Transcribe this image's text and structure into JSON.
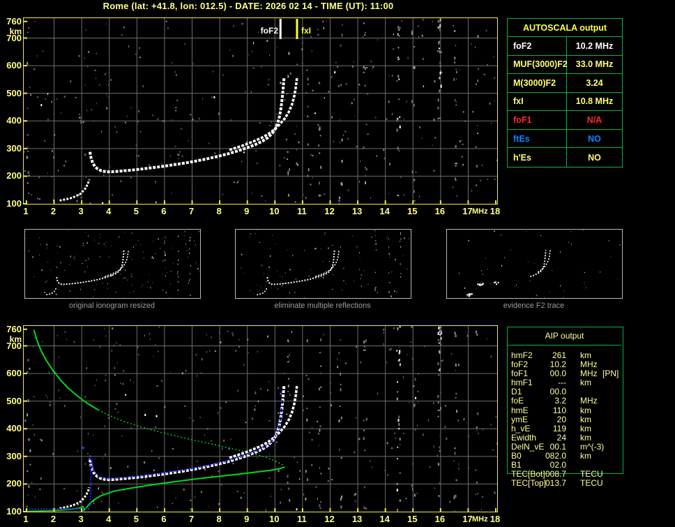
{
  "header": {
    "title": "Rome (lat: +41.8, lon: 012.5) - DATE: 2026 02 14 - TIME (UT): 11:00"
  },
  "autoscala": {
    "title": "AUTOSCALA output",
    "rows": [
      {
        "label": "foF2",
        "value": "10.2 MHz",
        "color": "#ffffff"
      },
      {
        "label": "MUF(3000)F2",
        "value": "33.0 MHz",
        "color": "#ffff73"
      },
      {
        "label": "M(3000)F2",
        "value": "3.24",
        "color": "#ffff73"
      },
      {
        "label": "fxI",
        "value": "10.8 MHz",
        "color": "#ffff73"
      },
      {
        "label": "foF1",
        "value": "N/A",
        "color": "#ff2a2a"
      },
      {
        "label": "ftEs",
        "value": "NO",
        "color": "#0b86ff"
      },
      {
        "label": "h'Es",
        "value": "NO",
        "color": "#ffff73"
      }
    ]
  },
  "aip": {
    "title": "AIP output",
    "rows": [
      {
        "label": "hmF2",
        "value": "261",
        "unit": "km",
        "note": ""
      },
      {
        "label": "foF2",
        "value": "10.2",
        "unit": "MHz",
        "note": ""
      },
      {
        "label": "foF1",
        "value": "00.0",
        "unit": "MHz",
        "note": "[PN]"
      },
      {
        "label": "hmF1",
        "value": "---",
        "unit": "km",
        "note": ""
      },
      {
        "label": "D1",
        "value": "00.0",
        "unit": "",
        "note": ""
      },
      {
        "label": "foE",
        "value": "3.2",
        "unit": "MHz",
        "note": ""
      },
      {
        "label": "hmE",
        "value": "110",
        "unit": "km",
        "note": ""
      },
      {
        "label": "ymE",
        "value": "20",
        "unit": "km",
        "note": ""
      },
      {
        "label": "h_vE",
        "value": "119",
        "unit": "km",
        "note": ""
      },
      {
        "label": "Ewidth",
        "value": "24",
        "unit": "km",
        "note": ""
      },
      {
        "label": "DelN_vE",
        "value": "00.1",
        "unit": "m^(-3)",
        "note": ""
      },
      {
        "label": "B0",
        "value": "082.0",
        "unit": "km",
        "note": ""
      },
      {
        "label": "B1",
        "value": "02.0",
        "unit": "",
        "note": ""
      },
      {
        "label": "TEC[Bot]",
        "value": "008.7",
        "unit": "TECU",
        "note": ""
      },
      {
        "label": "TEC[Top]",
        "value": "013.7",
        "unit": "TECU",
        "note": ""
      }
    ]
  },
  "thumbnails": [
    {
      "caption": "original ionogram resized"
    },
    {
      "caption": "eliminate multiple reflections"
    },
    {
      "caption": "evidence F2 trace"
    }
  ],
  "chart_data": {
    "type": "scatter",
    "title": "Ionogram virtual height vs sounding frequency (top: recorded ionogram with AUTOSCALA markers; bottom: same ionogram with scaled trace in blue and inverted electron density profile in green)",
    "xlabel": "MHz",
    "ylabel": "km",
    "x_unit": "MHz",
    "y_unit": "km",
    "xlim": [
      0.9,
      18.05
    ],
    "ylim": [
      100,
      772
    ],
    "x_ticks": [
      1,
      2,
      3,
      4,
      5,
      6,
      7,
      8,
      9,
      10,
      11,
      12,
      13,
      14,
      15,
      16,
      17,
      18
    ],
    "y_ticks": [
      760,
      700,
      600,
      500,
      400,
      300,
      200,
      100
    ],
    "grid": true,
    "markers": [
      {
        "label": "foF2",
        "f": 10.2,
        "color": "#ffffff"
      },
      {
        "label": "fxI",
        "f": 10.8,
        "color": "#ffff30"
      }
    ],
    "series": {
      "o_mode_E": [
        [
          2.2,
          112
        ],
        [
          2.35,
          115
        ],
        [
          2.5,
          118
        ],
        [
          2.65,
          122
        ],
        [
          2.8,
          128
        ],
        [
          2.95,
          136
        ],
        [
          3.05,
          146
        ],
        [
          3.15,
          158
        ],
        [
          3.22,
          172
        ],
        [
          3.28,
          188
        ]
      ],
      "o_mode_F": [
        [
          3.3,
          288
        ],
        [
          3.34,
          266
        ],
        [
          3.4,
          248
        ],
        [
          3.48,
          235
        ],
        [
          3.58,
          226
        ],
        [
          3.72,
          219
        ],
        [
          3.9,
          216
        ],
        [
          4.1,
          216
        ],
        [
          4.35,
          218
        ],
        [
          4.7,
          221
        ],
        [
          5.1,
          225
        ],
        [
          5.5,
          230
        ],
        [
          5.9,
          235
        ],
        [
          6.3,
          241
        ],
        [
          6.7,
          247
        ],
        [
          7.1,
          254
        ],
        [
          7.5,
          262
        ],
        [
          7.9,
          271
        ],
        [
          8.3,
          281
        ],
        [
          8.7,
          293
        ],
        [
          9.0,
          303
        ],
        [
          9.3,
          315
        ],
        [
          9.55,
          327
        ],
        [
          9.75,
          340
        ],
        [
          9.9,
          355
        ],
        [
          10.02,
          372
        ],
        [
          10.1,
          392
        ],
        [
          10.17,
          418
        ],
        [
          10.22,
          448
        ],
        [
          10.26,
          480
        ],
        [
          10.29,
          510
        ],
        [
          10.31,
          535
        ],
        [
          10.33,
          558
        ]
      ],
      "x_mode_F": [
        [
          8.35,
          295
        ],
        [
          8.6,
          303
        ],
        [
          8.9,
          313
        ],
        [
          9.2,
          325
        ],
        [
          9.5,
          338
        ],
        [
          9.75,
          352
        ],
        [
          9.95,
          367
        ],
        [
          10.15,
          385
        ],
        [
          10.35,
          408
        ],
        [
          10.5,
          432
        ],
        [
          10.62,
          460
        ],
        [
          10.7,
          490
        ],
        [
          10.75,
          518
        ],
        [
          10.78,
          542
        ],
        [
          10.8,
          560
        ]
      ],
      "blue_flat": [
        [
          1.0,
          109
        ],
        [
          3.3,
          110
        ]
      ],
      "blue_F": [
        [
          3.31,
          122
        ],
        [
          3.32,
          158
        ],
        [
          3.33,
          200
        ],
        [
          3.34,
          245
        ],
        [
          3.33,
          272
        ],
        [
          3.36,
          290
        ],
        [
          3.42,
          252
        ],
        [
          3.5,
          238
        ],
        [
          3.6,
          229
        ],
        [
          3.74,
          222
        ],
        [
          3.92,
          220
        ],
        [
          4.12,
          220
        ],
        [
          4.37,
          222
        ],
        [
          4.72,
          225
        ],
        [
          5.12,
          229
        ],
        [
          5.52,
          234
        ],
        [
          5.92,
          239
        ],
        [
          6.32,
          245
        ],
        [
          6.72,
          251
        ],
        [
          7.12,
          258
        ],
        [
          7.52,
          266
        ],
        [
          7.92,
          275
        ],
        [
          8.32,
          285
        ],
        [
          8.72,
          297
        ],
        [
          9.02,
          307
        ],
        [
          9.32,
          319
        ],
        [
          9.57,
          331
        ],
        [
          9.77,
          344
        ],
        [
          9.92,
          359
        ],
        [
          10.04,
          376
        ],
        [
          10.12,
          396
        ],
        [
          10.18,
          422
        ],
        [
          10.22,
          452
        ],
        [
          10.25,
          482
        ],
        [
          10.27,
          505
        ]
      ],
      "blue_stray": [
        [
          3.04,
          332
        ],
        [
          3.27,
          292
        ],
        [
          10.2,
          528
        ]
      ],
      "profile_upper": [
        [
          1.27,
          758
        ],
        [
          1.38,
          720
        ],
        [
          1.52,
          685
        ],
        [
          1.7,
          650
        ],
        [
          1.95,
          612
        ],
        [
          2.2,
          580
        ],
        [
          2.5,
          548
        ],
        [
          2.85,
          518
        ],
        [
          3.2,
          492
        ],
        [
          3.6,
          468
        ],
        [
          4.0,
          448
        ],
        [
          4.5,
          428
        ],
        [
          5.0,
          411
        ],
        [
          5.6,
          394
        ],
        [
          6.2,
          379
        ],
        [
          6.9,
          362
        ],
        [
          7.6,
          347
        ],
        [
          8.3,
          331
        ],
        [
          9.0,
          315
        ],
        [
          9.6,
          299
        ],
        [
          10.0,
          284
        ],
        [
          10.2,
          274
        ],
        [
          10.3,
          267
        ],
        [
          10.35,
          261
        ]
      ],
      "profile_lower": [
        [
          10.35,
          261
        ],
        [
          10.15,
          255
        ],
        [
          9.8,
          249
        ],
        [
          9.3,
          243
        ],
        [
          8.7,
          236
        ],
        [
          8.0,
          228
        ],
        [
          7.2,
          219
        ],
        [
          6.4,
          209
        ],
        [
          5.6,
          198
        ],
        [
          4.9,
          187
        ],
        [
          4.2,
          175
        ],
        [
          3.7,
          158
        ],
        [
          3.45,
          143
        ],
        [
          3.3,
          130
        ],
        [
          3.2,
          118
        ],
        [
          3.12,
          108
        ]
      ],
      "profile_E": [
        [
          1.0,
          101
        ],
        [
          1.4,
          102
        ],
        [
          1.8,
          103
        ],
        [
          2.2,
          105
        ],
        [
          2.5,
          107
        ],
        [
          2.75,
          110
        ],
        [
          2.95,
          115
        ],
        [
          3.05,
          119
        ],
        [
          3.1,
          110
        ],
        [
          3.05,
          103
        ],
        [
          3.12,
          108
        ]
      ]
    },
    "f2_blobs": [
      [
        3.2,
        210
      ],
      [
        3.5,
        222
      ],
      [
        5.1,
        232
      ],
      [
        2.1,
        118
      ],
      [
        2.5,
        128
      ]
    ],
    "noise": {
      "scatter_count": 330,
      "streaks": [
        {
          "f": 1.05,
          "n": 10,
          "bright": false,
          "top": false
        },
        {
          "f": 10.45,
          "n": 10,
          "bright": false,
          "top": false
        },
        {
          "f": 11.15,
          "n": 8,
          "bright": false,
          "top": false
        },
        {
          "f": 11.6,
          "n": 14,
          "bright": false,
          "top": false
        },
        {
          "f": 12.35,
          "n": 10,
          "bright": false,
          "top": false
        },
        {
          "f": 13.25,
          "n": 12,
          "bright": false,
          "top": false
        },
        {
          "f": 14.45,
          "n": 22,
          "bright": true,
          "top": false
        },
        {
          "f": 15.0,
          "n": 10,
          "bright": false,
          "top": false
        },
        {
          "f": 15.95,
          "n": 30,
          "bright": true,
          "top": true
        },
        {
          "f": 16.5,
          "n": 12,
          "bright": false,
          "top": false
        },
        {
          "f": 17.3,
          "n": 8,
          "bright": false,
          "top": false
        }
      ]
    },
    "legend": false
  }
}
